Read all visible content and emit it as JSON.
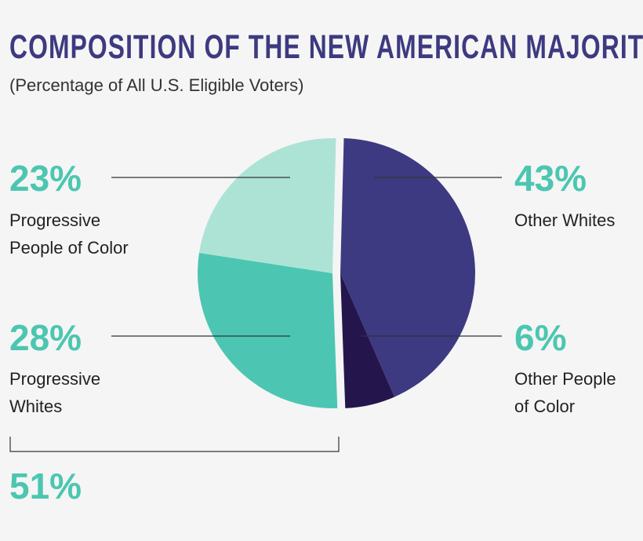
{
  "chart_data": {
    "type": "pie",
    "title": "COMPOSITION OF THE NEW AMERICAN MAJORITY",
    "subtitle": "(Percentage of All U.S. Eligible Voters)",
    "slices": [
      {
        "name": "Other Whites",
        "value": 43,
        "label": "43%",
        "color": "#3d3a82",
        "group": "right"
      },
      {
        "name": "Other People of Color",
        "label_lines": [
          "Other People",
          "of Color"
        ],
        "value": 6,
        "label": "6%",
        "color": "#24164d",
        "group": "right"
      },
      {
        "name": "Progressive Whites",
        "label_lines": [
          "Progressive",
          "Whites"
        ],
        "value": 28,
        "label": "28%",
        "color": "#4cc6b2",
        "group": "left"
      },
      {
        "name": "Progressive People of Color",
        "label_lines": [
          "Progressive",
          "People of Color"
        ],
        "value": 23,
        "label": "23%",
        "color": "#ade3d5",
        "group": "left"
      }
    ],
    "bracket_total": "51%",
    "accent_color": "#4cc6b0"
  }
}
